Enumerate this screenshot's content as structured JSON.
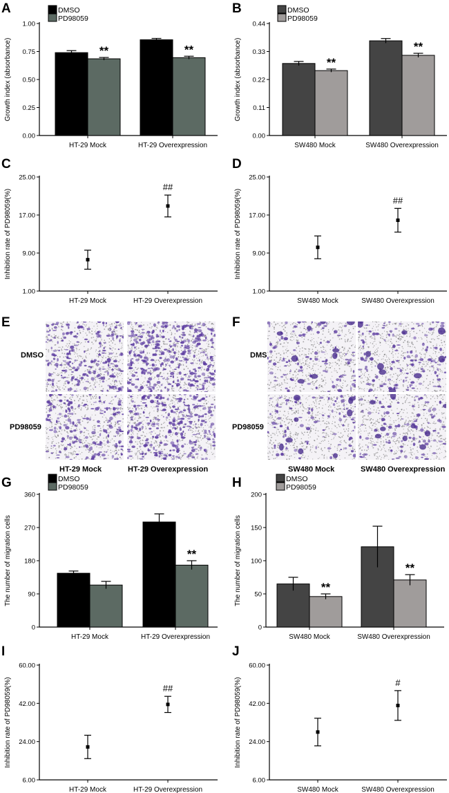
{
  "colors": {
    "dmso_ht29": "#000000",
    "pd_ht29": "#5c6a63",
    "dmso_sw480": "#444444",
    "pd_sw480": "#a09c9b",
    "stain": "#5b3aa0"
  },
  "chart_data": [
    {
      "panel": "A",
      "type": "bar",
      "ylabel": "Growth index (absorbance)",
      "categories": [
        "HT-29 Mock",
        "HT-29 Overexpression"
      ],
      "ylim": [
        0,
        1.0
      ],
      "yticks": [
        "0.00",
        "0.25",
        "0.50",
        "0.75",
        "1.00"
      ],
      "legend": [
        "DMSO",
        "PD98059"
      ],
      "series": [
        {
          "name": "DMSO",
          "values": [
            0.74,
            0.855
          ],
          "errors": [
            0.018,
            0.012
          ]
        },
        {
          "name": "PD98059",
          "values": [
            0.685,
            0.695
          ],
          "errors": [
            0.012,
            0.013
          ]
        }
      ],
      "annotations": [
        {
          "category": 0,
          "series": 1,
          "text": "**"
        },
        {
          "category": 1,
          "series": 1,
          "text": "**"
        }
      ]
    },
    {
      "panel": "B",
      "type": "bar",
      "ylabel": "Growth index (absorbance)",
      "categories": [
        "SW480 Mock",
        "SW480 Overexpression"
      ],
      "ylim": [
        0,
        0.44
      ],
      "yticks": [
        "0.00",
        "0.11",
        "0.22",
        "0.33",
        "0.44"
      ],
      "legend": [
        "DMSO",
        "PD98059"
      ],
      "series": [
        {
          "name": "DMSO",
          "values": [
            0.283,
            0.372
          ],
          "errors": [
            0.008,
            0.009
          ]
        },
        {
          "name": "PD98059",
          "values": [
            0.255,
            0.315
          ],
          "errors": [
            0.006,
            0.008
          ]
        }
      ],
      "annotations": [
        {
          "category": 0,
          "series": 1,
          "text": "**"
        },
        {
          "category": 1,
          "series": 1,
          "text": "**"
        }
      ]
    },
    {
      "panel": "C",
      "type": "scatter",
      "ylabel": "Inhibition rate of PD98059(%)",
      "categories": [
        "HT-29 Mock",
        "HT-29 Overexpression"
      ],
      "ylim": [
        1,
        25
      ],
      "yticks": [
        "1.00",
        "9.00",
        "17.00",
        "25.00"
      ],
      "values": [
        7.6,
        18.9
      ],
      "errors": [
        2.0,
        2.3
      ],
      "annotations": [
        {
          "category": 1,
          "text": "##"
        }
      ]
    },
    {
      "panel": "D",
      "type": "scatter",
      "ylabel": "Inhibition rate of PD98059(%)",
      "categories": [
        "SW480 Mock",
        "SW480 Overexpression"
      ],
      "ylim": [
        1,
        25
      ],
      "yticks": [
        "1.00",
        "9.00",
        "17.00",
        "25.00"
      ],
      "values": [
        10.2,
        15.9
      ],
      "errors": [
        2.4,
        2.5
      ],
      "annotations": [
        {
          "category": 1,
          "text": "##"
        }
      ]
    },
    {
      "panel": "G",
      "type": "bar",
      "ylabel": "The number of migration cells",
      "categories": [
        "HT-29 Mock",
        "HT-29 Overexpression"
      ],
      "ylim": [
        0,
        360
      ],
      "yticks": [
        "0",
        "90",
        "180",
        "270",
        "360"
      ],
      "legend": [
        "DMSO",
        "PD98059"
      ],
      "series": [
        {
          "name": "DMSO",
          "values": [
            146,
            285
          ],
          "errors": [
            6,
            22
          ]
        },
        {
          "name": "PD98059",
          "values": [
            114,
            168
          ],
          "errors": [
            10,
            12
          ]
        }
      ],
      "annotations": [
        {
          "category": 1,
          "series": 1,
          "text": "**"
        }
      ]
    },
    {
      "panel": "H",
      "type": "bar",
      "ylabel": "The number of migration cells",
      "categories": [
        "SW480 Mock",
        "SW480 Overexpression"
      ],
      "ylim": [
        0,
        200
      ],
      "yticks": [
        "0",
        "50",
        "100",
        "150",
        "200"
      ],
      "legend": [
        "DMSO",
        "PD98059"
      ],
      "series": [
        {
          "name": "DMSO",
          "values": [
            65,
            121
          ],
          "errors": [
            10,
            31
          ]
        },
        {
          "name": "PD98059",
          "values": [
            46,
            71
          ],
          "errors": [
            4,
            8
          ]
        }
      ],
      "annotations": [
        {
          "category": 0,
          "series": 1,
          "text": "**"
        },
        {
          "category": 1,
          "series": 1,
          "text": "**"
        }
      ]
    },
    {
      "panel": "I",
      "type": "scatter",
      "ylabel": "Inhibition rate of PD98059(%)",
      "categories": [
        "HT-29 Mock",
        "HT-29 Overexpression"
      ],
      "ylim": [
        6,
        60
      ],
      "yticks": [
        "6.00",
        "24.00",
        "42.00",
        "60.00"
      ],
      "values": [
        21.5,
        41.5
      ],
      "errors": [
        5.5,
        3.8
      ],
      "annotations": [
        {
          "category": 1,
          "text": "##"
        }
      ]
    },
    {
      "panel": "J",
      "type": "scatter",
      "ylabel": "Inhibition rate of PD98059(%)",
      "categories": [
        "SW480 Mock",
        "SW480 Overexpression"
      ],
      "ylim": [
        6,
        60
      ],
      "yticks": [
        "6.00",
        "24.00",
        "42.00",
        "60.00"
      ],
      "values": [
        28.5,
        41.0
      ],
      "errors": [
        6.5,
        7.0
      ],
      "annotations": [
        {
          "category": 1,
          "text": "#"
        }
      ]
    }
  ],
  "micrographs": [
    {
      "panel": "E",
      "row_labels": [
        "DMSO",
        "PD98059"
      ],
      "col_labels": [
        "HT-29 Mock",
        "HT-29 Overexpression"
      ]
    },
    {
      "panel": "F",
      "row_labels": [
        "DMSO",
        "PD98059"
      ],
      "col_labels": [
        "SW480 Mock",
        "SW480 Overexpression"
      ]
    }
  ]
}
